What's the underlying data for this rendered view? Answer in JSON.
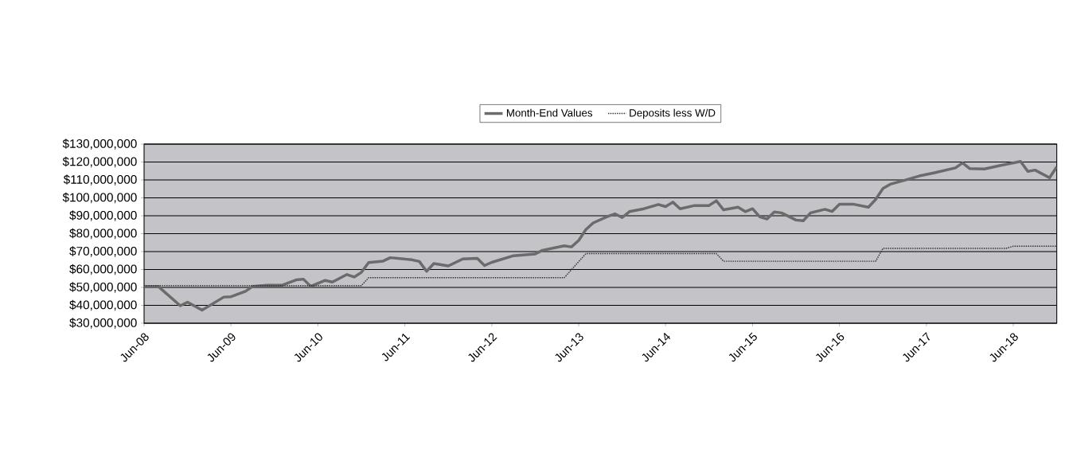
{
  "chart_data": {
    "type": "line",
    "xlim": [
      "2008-06",
      "2018-12"
    ],
    "xticks": [
      {
        "value": "2008-06",
        "label": "Jun-08"
      },
      {
        "value": "2009-06",
        "label": "Jun-09"
      },
      {
        "value": "2010-06",
        "label": "Jun-10"
      },
      {
        "value": "2011-06",
        "label": "Jun-11"
      },
      {
        "value": "2012-06",
        "label": "Jun-12"
      },
      {
        "value": "2013-06",
        "label": "Jun-13"
      },
      {
        "value": "2014-06",
        "label": "Jun-14"
      },
      {
        "value": "2015-06",
        "label": "Jun-15"
      },
      {
        "value": "2016-06",
        "label": "Jun-16"
      },
      {
        "value": "2017-06",
        "label": "Jun-17"
      },
      {
        "value": "2018-06",
        "label": "Jun-18"
      }
    ],
    "ylim": [
      30000000,
      130000000
    ],
    "yticks": [
      {
        "value": 30000000,
        "label": "$30,000,000"
      },
      {
        "value": 40000000,
        "label": "$40,000,000"
      },
      {
        "value": 50000000,
        "label": "$50,000,000"
      },
      {
        "value": 60000000,
        "label": "$60,000,000"
      },
      {
        "value": 70000000,
        "label": "$70,000,000"
      },
      {
        "value": 80000000,
        "label": "$80,000,000"
      },
      {
        "value": 90000000,
        "label": "$90,000,000"
      },
      {
        "value": 100000000,
        "label": "$100,000,000"
      },
      {
        "value": 110000000,
        "label": "$110,000,000"
      },
      {
        "value": 120000000,
        "label": "$120,000,000"
      },
      {
        "value": 130000000,
        "label": "$130,000,000"
      }
    ],
    "grid": "y",
    "legend": "top",
    "series": [
      {
        "name": "Month-End Values",
        "color": "#6b6b6b",
        "line_style": "solid",
        "x": [
          "2008-06",
          "2008-08",
          "2008-11",
          "2008-12",
          "2009-02",
          "2009-05",
          "2009-06",
          "2009-08",
          "2009-09",
          "2009-11",
          "2010-01",
          "2010-03",
          "2010-04",
          "2010-05",
          "2010-07",
          "2010-08",
          "2010-10",
          "2010-11",
          "2010-12",
          "2011-01",
          "2011-03",
          "2011-04",
          "2011-07",
          "2011-08",
          "2011-09",
          "2011-10",
          "2011-12",
          "2012-02",
          "2012-04",
          "2012-05",
          "2012-06",
          "2012-09",
          "2012-12",
          "2013-01",
          "2013-04",
          "2013-05",
          "2013-06",
          "2013-07",
          "2013-08",
          "2013-10",
          "2013-11",
          "2013-12",
          "2014-01",
          "2014-03",
          "2014-05",
          "2014-06",
          "2014-07",
          "2014-08",
          "2014-10",
          "2014-12",
          "2015-01",
          "2015-02",
          "2015-04",
          "2015-05",
          "2015-06",
          "2015-07",
          "2015-08",
          "2015-09",
          "2015-10",
          "2015-12",
          "2016-01",
          "2016-02",
          "2016-04",
          "2016-05",
          "2016-06",
          "2016-08",
          "2016-10",
          "2016-11",
          "2016-12",
          "2017-01",
          "2017-03",
          "2017-05",
          "2017-07",
          "2017-10",
          "2017-11",
          "2017-12",
          "2018-02",
          "2018-04",
          "2018-07",
          "2018-08",
          "2018-09",
          "2018-11",
          "2018-12"
        ],
        "values": [
          50500000,
          50400000,
          39800000,
          41800000,
          37300000,
          44600000,
          44800000,
          47800000,
          50600000,
          51200000,
          51200000,
          54200000,
          54600000,
          50600000,
          53900000,
          53000000,
          57200000,
          55800000,
          58400000,
          63900000,
          64700000,
          66600000,
          65400000,
          64500000,
          59000000,
          63300000,
          62000000,
          65900000,
          66200000,
          62200000,
          64000000,
          67700000,
          68700000,
          70700000,
          73200000,
          72600000,
          76200000,
          82300000,
          86000000,
          89600000,
          91100000,
          89000000,
          92300000,
          93900000,
          96300000,
          95100000,
          97600000,
          93900000,
          95700000,
          95700000,
          98400000,
          93300000,
          94800000,
          92300000,
          93900000,
          89400000,
          88200000,
          92100000,
          91600000,
          87600000,
          87200000,
          91600000,
          93600000,
          92400000,
          96400000,
          96400000,
          94800000,
          99100000,
          105200000,
          107600000,
          109800000,
          112200000,
          113900000,
          116700000,
          119500000,
          116300000,
          116100000,
          117900000,
          120300000,
          114800000,
          115500000,
          111200000,
          117300000
        ]
      },
      {
        "name": "Deposits less W/D",
        "color": "#333333",
        "line_style": "dotted",
        "x": [
          "2008-06",
          "2010-12",
          "2011-01",
          "2013-04",
          "2013-07",
          "2015-01",
          "2015-02",
          "2016-11",
          "2016-12",
          "2018-05",
          "2018-06",
          "2018-12"
        ],
        "values": [
          51000000,
          51000000,
          55400000,
          55400000,
          68900000,
          68900000,
          64600000,
          64600000,
          71800000,
          71800000,
          73000000,
          73000000
        ]
      }
    ]
  }
}
